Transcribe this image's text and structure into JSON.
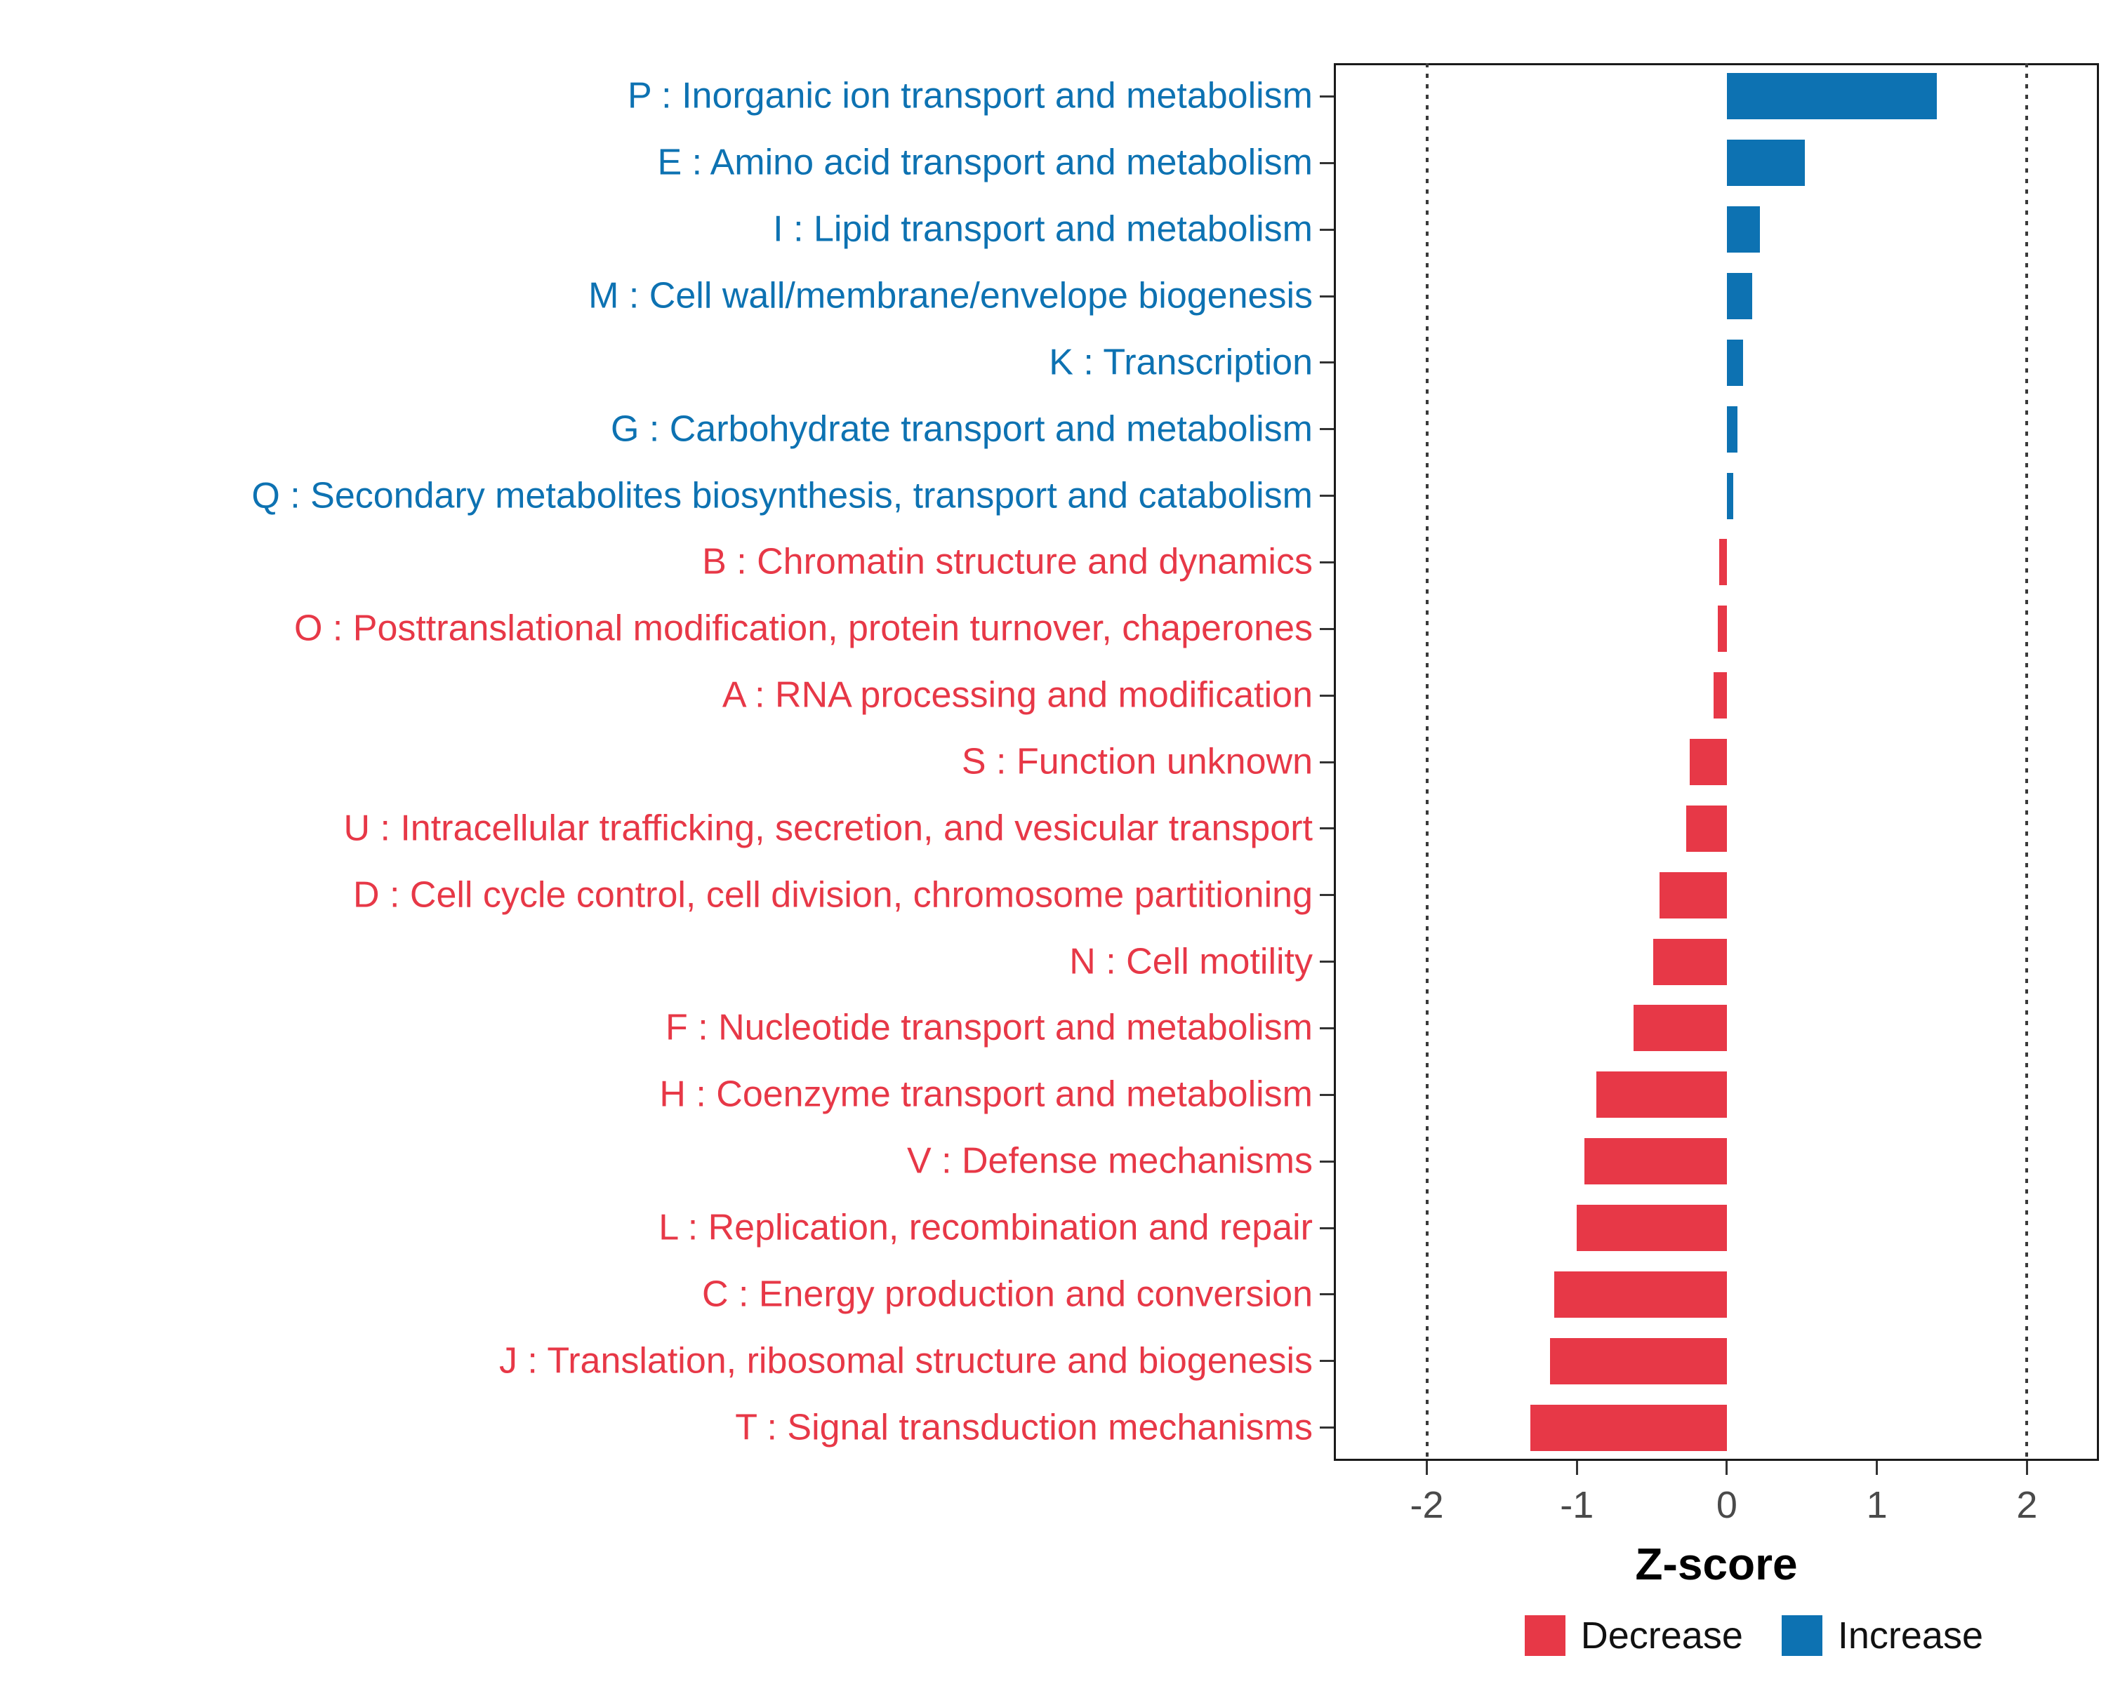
{
  "chart_data": {
    "type": "bar",
    "orientation": "horizontal",
    "title": "",
    "xlabel": "Z-score",
    "ylabel": "",
    "xlim": [
      -2.62,
      2.48
    ],
    "x_ticks": [
      -2,
      -1,
      0,
      1,
      2
    ],
    "reference_lines": [
      -2,
      2
    ],
    "grid": false,
    "legend_position": "bottom-right",
    "colors": {
      "decrease": "#E73847",
      "increase": "#0D72B2"
    },
    "legend": [
      {
        "label": "Decrease",
        "color": "#E73847"
      },
      {
        "label": "Increase",
        "color": "#0D72B2"
      }
    ],
    "categories": [
      {
        "label": "P : Inorganic ion transport and metabolism",
        "value": 1.4,
        "direction": "increase"
      },
      {
        "label": "E : Amino acid transport and metabolism",
        "value": 0.52,
        "direction": "increase"
      },
      {
        "label": "I : Lipid transport and metabolism",
        "value": 0.22,
        "direction": "increase"
      },
      {
        "label": "M : Cell wall/membrane/envelope biogenesis",
        "value": 0.17,
        "direction": "increase"
      },
      {
        "label": "K : Transcription",
        "value": 0.11,
        "direction": "increase"
      },
      {
        "label": "G : Carbohydrate transport and metabolism",
        "value": 0.07,
        "direction": "increase"
      },
      {
        "label": "Q : Secondary metabolites biosynthesis, transport and catabolism",
        "value": 0.04,
        "direction": "increase"
      },
      {
        "label": "B : Chromatin structure and dynamics",
        "value": -0.05,
        "direction": "decrease"
      },
      {
        "label": "O : Posttranslational modification, protein turnover, chaperones",
        "value": -0.06,
        "direction": "decrease"
      },
      {
        "label": "A : RNA processing and modification",
        "value": -0.09,
        "direction": "decrease"
      },
      {
        "label": "S : Function unknown",
        "value": -0.25,
        "direction": "decrease"
      },
      {
        "label": "U : Intracellular trafficking, secretion, and vesicular transport",
        "value": -0.27,
        "direction": "decrease"
      },
      {
        "label": "D : Cell cycle control, cell division, chromosome partitioning",
        "value": -0.45,
        "direction": "decrease"
      },
      {
        "label": "N : Cell motility",
        "value": -0.49,
        "direction": "decrease"
      },
      {
        "label": "F : Nucleotide transport and metabolism",
        "value": -0.62,
        "direction": "decrease"
      },
      {
        "label": "H : Coenzyme transport and metabolism",
        "value": -0.87,
        "direction": "decrease"
      },
      {
        "label": "V : Defense mechanisms",
        "value": -0.95,
        "direction": "decrease"
      },
      {
        "label": "L : Replication, recombination and repair",
        "value": -1.0,
        "direction": "decrease"
      },
      {
        "label": "C : Energy production and conversion",
        "value": -1.15,
        "direction": "decrease"
      },
      {
        "label": "J : Translation, ribosomal structure and biogenesis",
        "value": -1.18,
        "direction": "decrease"
      },
      {
        "label": "T : Signal transduction mechanisms",
        "value": -1.31,
        "direction": "decrease"
      }
    ]
  }
}
